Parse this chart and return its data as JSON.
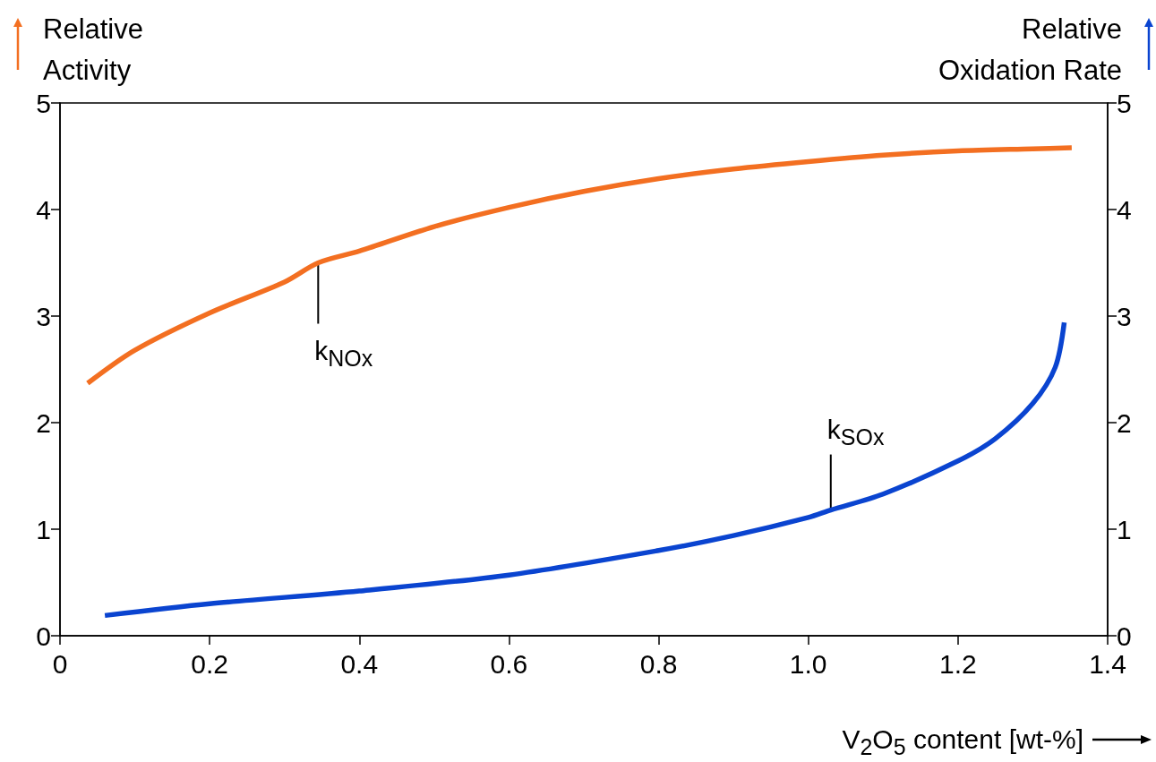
{
  "chart_data": {
    "type": "line",
    "xlabel": "V$_{2}$O$_{5}$ content [wt-%]",
    "ylabel": "Relative Activity",
    "y2label": "Relative Oxidation Rate",
    "xlim": [
      0,
      1.4
    ],
    "xticks": [
      0,
      0.2,
      0.4,
      0.6,
      0.8,
      {
        "value": 1,
        "label": "1.0"
      },
      1.2,
      1.4
    ],
    "ylim": [
      0,
      5
    ],
    "yticks": [
      0,
      1,
      2,
      3,
      4,
      5
    ],
    "y2lim": [
      0,
      5
    ],
    "y2ticks": [
      0,
      1,
      2,
      3,
      4,
      5
    ],
    "grid": false,
    "marker": "none",
    "line_style": "solid",
    "series": [
      {
        "color": "#f36f21",
        "x": [
          0.037,
          0.1,
          0.2,
          0.3,
          0.345,
          0.4,
          0.5,
          0.6,
          0.7,
          0.8,
          0.9,
          1.0,
          1.1,
          1.2,
          1.3,
          1.352
        ],
        "values": [
          2.37,
          2.68,
          3.03,
          3.32,
          3.5,
          3.61,
          3.84,
          4.02,
          4.17,
          4.29,
          4.38,
          4.45,
          4.51,
          4.55,
          4.57,
          4.58
        ]
      },
      {
        "color": "#0a44d0",
        "axis": "y2",
        "x": [
          0.06,
          0.2,
          0.4,
          0.6,
          0.8,
          0.9,
          1.0,
          1.03,
          1.1,
          1.2,
          1.25,
          1.3,
          1.33,
          1.342
        ],
        "values": [
          0.19,
          0.3,
          0.42,
          0.57,
          0.8,
          0.94,
          1.11,
          1.18,
          1.33,
          1.64,
          1.85,
          2.18,
          2.52,
          2.94
        ]
      }
    ],
    "annotations": [
      {
        "text": "k$_{NOx}$",
        "x": 0.345,
        "y": 3.5
      },
      {
        "text": "k$_{SOx}$",
        "x": 1.03,
        "y": 1.18
      }
    ]
  }
}
